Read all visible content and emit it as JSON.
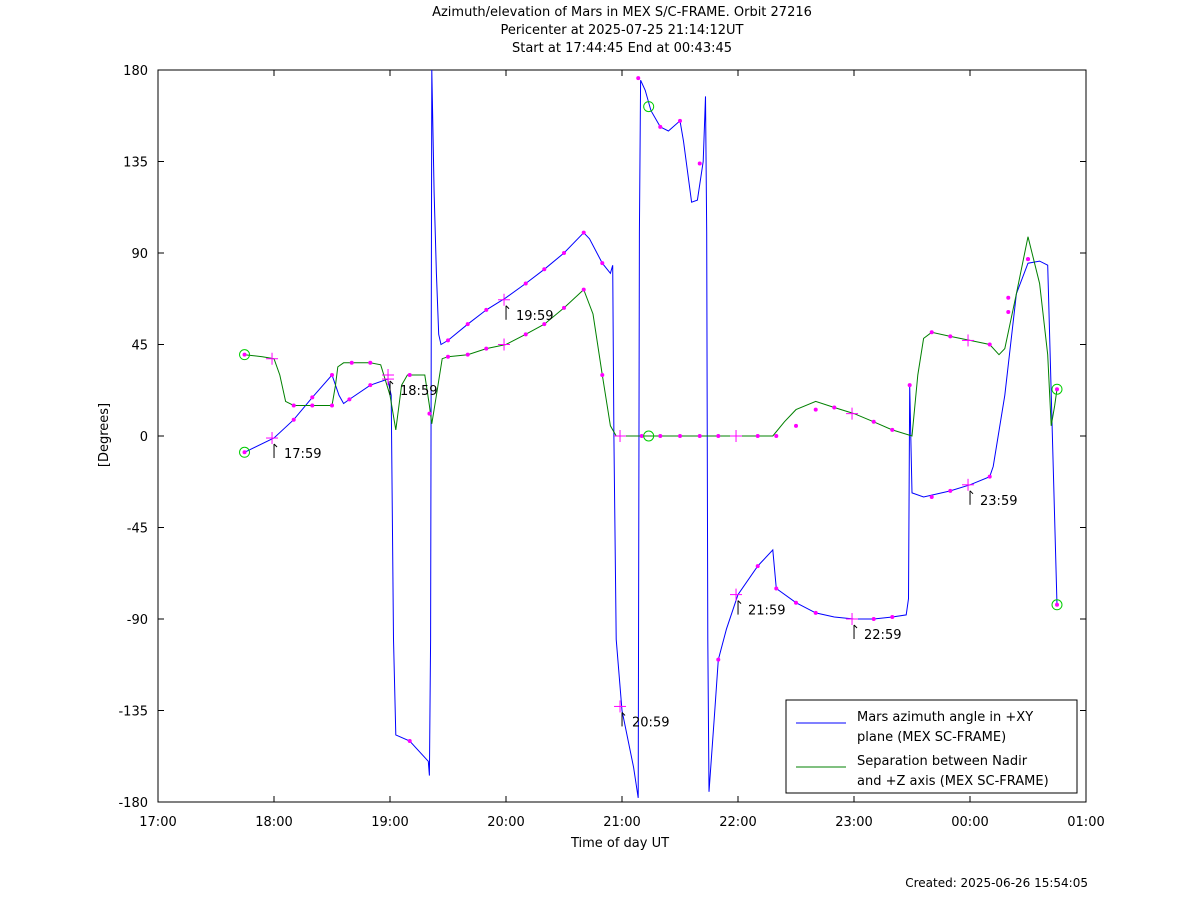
{
  "title": {
    "line1": "Azimuth/elevation of Mars in MEX S/C-FRAME.  Orbit 27216",
    "line2": "Pericenter at 2025-07-25 21:14:12UT",
    "line3": "Start at 17:44:45 End at 00:43:45"
  },
  "footer": {
    "created": "Created: 2025-06-26 15:54:05"
  },
  "chart_data": {
    "type": "line",
    "xlabel": "Time of day UT",
    "ylabel": "[Degrees]",
    "xlim": [
      17.0,
      25.0
    ],
    "ylim": [
      -180,
      180
    ],
    "x_ticks": [
      17,
      18,
      19,
      20,
      21,
      22,
      23,
      24,
      25
    ],
    "x_tick_labels": [
      "17:00",
      "18:00",
      "19:00",
      "20:00",
      "21:00",
      "22:00",
      "23:00",
      "00:00",
      "01:00"
    ],
    "y_ticks": [
      180,
      135,
      90,
      45,
      0,
      -45,
      -90,
      -135,
      -180
    ],
    "y_tick_labels": [
      "180",
      "135",
      "90",
      "45",
      "0",
      "-45",
      "-90",
      "-135",
      "-180"
    ],
    "grid": false,
    "legend_position": "bottom-right",
    "series": [
      {
        "name": "Mars azimuth angle in +XY plane (MEX SC-FRAME)",
        "legend_lines": [
          "Mars azimuth angle in +XY",
          "plane (MEX SC-FRAME)"
        ],
        "color": "#0000ff",
        "points": [
          [
            17.746,
            -8
          ],
          [
            18.0,
            -1
          ],
          [
            18.17,
            8
          ],
          [
            18.33,
            19
          ],
          [
            18.5,
            30
          ],
          [
            18.56,
            20
          ],
          [
            18.6,
            16
          ],
          [
            18.65,
            18
          ],
          [
            18.83,
            25
          ],
          [
            18.98,
            28
          ],
          [
            19.01,
            20
          ],
          [
            19.03,
            -100
          ],
          [
            19.05,
            -147
          ],
          [
            19.17,
            -150
          ],
          [
            19.33,
            -160
          ],
          [
            19.34,
            -167
          ],
          [
            19.35,
            -100
          ],
          [
            19.36,
            180
          ],
          [
            19.38,
            120
          ],
          [
            19.4,
            80
          ],
          [
            19.42,
            50
          ],
          [
            19.44,
            45
          ],
          [
            19.5,
            47
          ],
          [
            19.67,
            55
          ],
          [
            19.83,
            62
          ],
          [
            20.0,
            68
          ],
          [
            20.17,
            75
          ],
          [
            20.33,
            82
          ],
          [
            20.5,
            90
          ],
          [
            20.67,
            100
          ],
          [
            20.72,
            97
          ],
          [
            20.83,
            85
          ],
          [
            20.9,
            80
          ],
          [
            20.92,
            84
          ],
          [
            20.93,
            0
          ],
          [
            20.95,
            -100
          ],
          [
            21.0,
            -135
          ],
          [
            21.1,
            -163
          ],
          [
            21.14,
            -178
          ],
          [
            21.15,
            100
          ],
          [
            21.16,
            175
          ],
          [
            21.2,
            170
          ],
          [
            21.25,
            160
          ],
          [
            21.33,
            152
          ],
          [
            21.4,
            150
          ],
          [
            21.5,
            155
          ],
          [
            21.53,
            145
          ],
          [
            21.6,
            115
          ],
          [
            21.65,
            116
          ],
          [
            21.7,
            135
          ],
          [
            21.72,
            167
          ],
          [
            21.73,
            100
          ],
          [
            21.74,
            -100
          ],
          [
            21.75,
            -175
          ],
          [
            21.8,
            -135
          ],
          [
            21.83,
            -110
          ],
          [
            21.9,
            -95
          ],
          [
            22.0,
            -78
          ],
          [
            22.17,
            -64
          ],
          [
            22.3,
            -56
          ],
          [
            22.33,
            -75
          ],
          [
            22.5,
            -82
          ],
          [
            22.67,
            -87
          ],
          [
            22.83,
            -89
          ],
          [
            23.0,
            -90
          ],
          [
            23.17,
            -90
          ],
          [
            23.33,
            -89
          ],
          [
            23.45,
            -88
          ],
          [
            23.47,
            -80
          ],
          [
            23.48,
            25
          ],
          [
            23.5,
            -28
          ],
          [
            23.6,
            -30
          ],
          [
            23.83,
            -27
          ],
          [
            24.0,
            -24
          ],
          [
            24.17,
            -20
          ],
          [
            24.2,
            -15
          ],
          [
            24.3,
            20
          ],
          [
            24.4,
            70
          ],
          [
            24.5,
            85
          ],
          [
            24.6,
            86
          ],
          [
            24.67,
            84
          ],
          [
            24.72,
            -20
          ],
          [
            24.75,
            -83
          ]
        ],
        "markers": [
          [
            17.746,
            -8
          ],
          [
            18.17,
            8
          ],
          [
            18.33,
            19
          ],
          [
            18.5,
            30
          ],
          [
            18.65,
            18
          ],
          [
            18.83,
            25
          ],
          [
            19.17,
            -150
          ],
          [
            19.5,
            47
          ],
          [
            19.67,
            55
          ],
          [
            19.83,
            62
          ],
          [
            20.17,
            75
          ],
          [
            20.33,
            82
          ],
          [
            20.5,
            90
          ],
          [
            20.67,
            100
          ],
          [
            20.83,
            85
          ],
          [
            21.14,
            176
          ],
          [
            21.33,
            152
          ],
          [
            21.5,
            155
          ],
          [
            21.67,
            134
          ],
          [
            21.83,
            -110
          ],
          [
            22.17,
            -64
          ],
          [
            22.33,
            -75
          ],
          [
            22.5,
            -82
          ],
          [
            22.67,
            -87
          ],
          [
            23.17,
            -90
          ],
          [
            23.33,
            -89
          ],
          [
            23.48,
            25
          ],
          [
            23.67,
            -30
          ],
          [
            23.83,
            -27
          ],
          [
            24.17,
            -20
          ],
          [
            24.33,
            61
          ],
          [
            24.5,
            87
          ],
          [
            24.75,
            -83
          ]
        ]
      },
      {
        "name": "Separation between Nadir and +Z axis (MEX SC-FRAME)",
        "legend_lines": [
          "Separation between Nadir",
          "and +Z axis (MEX SC-FRAME)"
        ],
        "color": "#008000",
        "points": [
          [
            17.746,
            40
          ],
          [
            17.9,
            39
          ],
          [
            18.0,
            38
          ],
          [
            18.05,
            30
          ],
          [
            18.1,
            17
          ],
          [
            18.17,
            15
          ],
          [
            18.33,
            15
          ],
          [
            18.5,
            15
          ],
          [
            18.53,
            25
          ],
          [
            18.55,
            34
          ],
          [
            18.6,
            36
          ],
          [
            18.83,
            36
          ],
          [
            18.92,
            35
          ],
          [
            19.0,
            20
          ],
          [
            19.05,
            3
          ],
          [
            19.1,
            25
          ],
          [
            19.15,
            30
          ],
          [
            19.3,
            30
          ],
          [
            19.34,
            15
          ],
          [
            19.36,
            6
          ],
          [
            19.4,
            20
          ],
          [
            19.45,
            38
          ],
          [
            19.5,
            39
          ],
          [
            19.67,
            40
          ],
          [
            19.83,
            43
          ],
          [
            20.0,
            45
          ],
          [
            20.17,
            50
          ],
          [
            20.33,
            55
          ],
          [
            20.5,
            63
          ],
          [
            20.67,
            72
          ],
          [
            20.75,
            60
          ],
          [
            20.83,
            30
          ],
          [
            20.9,
            5
          ],
          [
            20.95,
            0
          ],
          [
            21.0,
            0
          ],
          [
            21.5,
            0
          ],
          [
            22.0,
            0
          ],
          [
            22.3,
            0
          ],
          [
            22.4,
            7
          ],
          [
            22.5,
            13
          ],
          [
            22.67,
            17
          ],
          [
            22.83,
            14
          ],
          [
            23.0,
            11
          ],
          [
            23.17,
            7
          ],
          [
            23.33,
            3
          ],
          [
            23.5,
            0
          ],
          [
            23.55,
            30
          ],
          [
            23.6,
            48
          ],
          [
            23.67,
            51
          ],
          [
            23.83,
            49
          ],
          [
            24.0,
            47
          ],
          [
            24.17,
            45
          ],
          [
            24.25,
            40
          ],
          [
            24.3,
            43
          ],
          [
            24.4,
            70
          ],
          [
            24.5,
            98
          ],
          [
            24.6,
            75
          ],
          [
            24.67,
            40
          ],
          [
            24.7,
            5
          ],
          [
            24.73,
            15
          ],
          [
            24.75,
            23
          ]
        ],
        "markers": [
          [
            17.746,
            40
          ],
          [
            18.17,
            15
          ],
          [
            18.33,
            15
          ],
          [
            18.5,
            15
          ],
          [
            18.67,
            36
          ],
          [
            18.83,
            36
          ],
          [
            19.17,
            30
          ],
          [
            19.34,
            11
          ],
          [
            19.5,
            39
          ],
          [
            19.67,
            40
          ],
          [
            19.83,
            43
          ],
          [
            20.17,
            50
          ],
          [
            20.33,
            55
          ],
          [
            20.5,
            63
          ],
          [
            20.67,
            72
          ],
          [
            20.83,
            30
          ],
          [
            21.17,
            0
          ],
          [
            21.33,
            0
          ],
          [
            21.5,
            0
          ],
          [
            21.67,
            0
          ],
          [
            21.83,
            0
          ],
          [
            22.17,
            0
          ],
          [
            22.33,
            0
          ],
          [
            22.5,
            5
          ],
          [
            22.67,
            13
          ],
          [
            22.83,
            14
          ],
          [
            23.17,
            7
          ],
          [
            23.33,
            3
          ],
          [
            23.67,
            51
          ],
          [
            23.83,
            49
          ],
          [
            24.17,
            45
          ],
          [
            24.33,
            68
          ],
          [
            24.5,
            87
          ],
          [
            24.75,
            23
          ]
        ]
      }
    ],
    "hour_marks": [
      {
        "label": "17:59",
        "x": 17.983,
        "az": -1,
        "sep": 38
      },
      {
        "label": "18:59",
        "x": 18.983,
        "az": 28,
        "sep": 30
      },
      {
        "label": "19:59",
        "x": 19.983,
        "az": 67,
        "sep": 45
      },
      {
        "label": "20:59",
        "x": 20.983,
        "az": -133,
        "sep": 0
      },
      {
        "label": "21:59",
        "x": 21.983,
        "az": -78,
        "sep": 0
      },
      {
        "label": "22:59",
        "x": 22.983,
        "az": -90,
        "sep": 11
      },
      {
        "label": "23:59",
        "x": 23.983,
        "az": -24,
        "sep": 47
      }
    ],
    "label_offsets": [
      "az",
      "sep",
      "az",
      "az",
      "az",
      "az",
      "az"
    ],
    "circles": [
      [
        17.746,
        40
      ],
      [
        17.746,
        -8
      ],
      [
        21.23,
        162
      ],
      [
        21.23,
        0
      ],
      [
        24.75,
        23
      ],
      [
        24.75,
        -83
      ]
    ]
  }
}
